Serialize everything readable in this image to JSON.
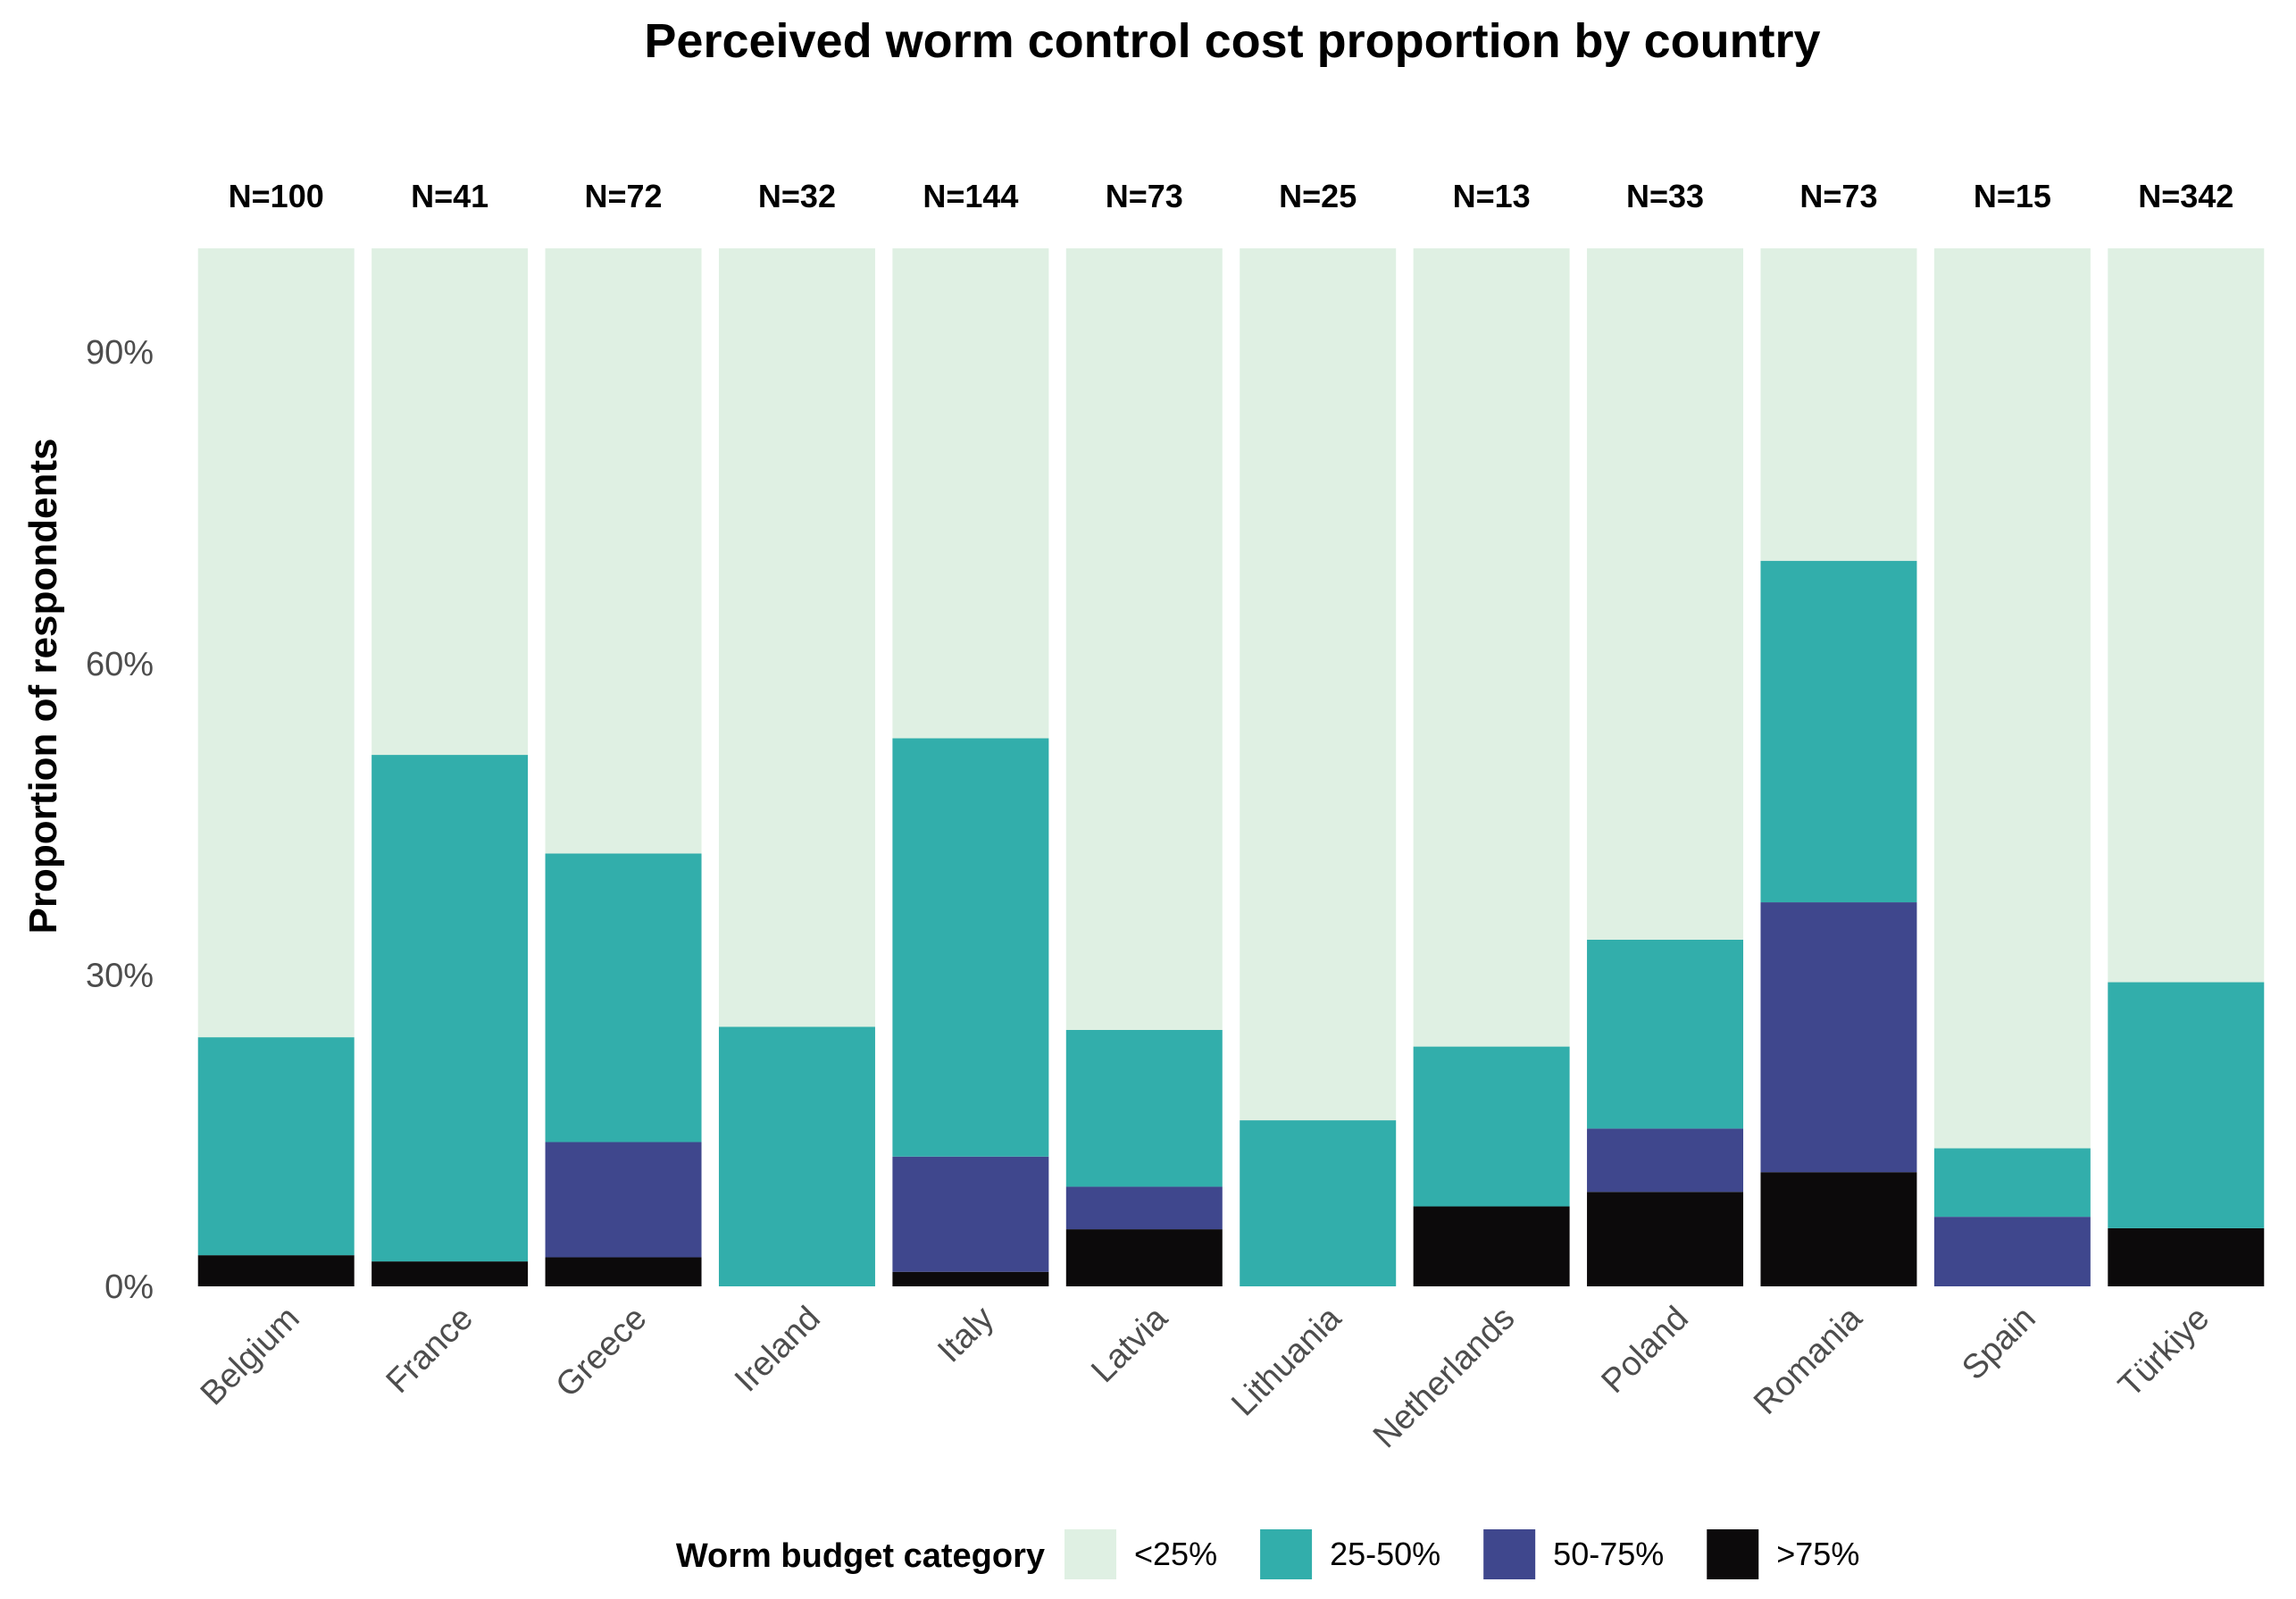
{
  "chart_data": {
    "type": "bar",
    "stacked": true,
    "title": "Perceived worm control cost proportion by country",
    "xlabel": "",
    "ylabel": "Proportion of respondents",
    "ylim": [
      0,
      1
    ],
    "yticks": [
      0,
      0.3,
      0.6,
      0.9
    ],
    "ytick_labels": [
      "0%",
      "30%",
      "60%",
      "90%"
    ],
    "categories": [
      "Belgium",
      "France",
      "Greece",
      "Ireland",
      "Italy",
      "Latvia",
      "Lithuania",
      "Netherlands",
      "Poland",
      "Romania",
      "Spain",
      "Türkiye"
    ],
    "n_labels": [
      "N=100",
      "N=41",
      "N=72",
      "N=32",
      "N=144",
      "N=73",
      "N=25",
      "N=13",
      "N=33",
      "N=73",
      "N=15",
      "N=342"
    ],
    "grid": false,
    "legend": {
      "title": "Worm budget category",
      "position": "bottom"
    },
    "series": [
      {
        "name": ">75%",
        "color": "#0c0a0b",
        "values": [
          0.03,
          0.024,
          0.028,
          0.0,
          0.014,
          0.055,
          0.0,
          0.077,
          0.091,
          0.11,
          0.0,
          0.056
        ]
      },
      {
        "name": "50-75%",
        "color": "#3f478d",
        "values": [
          0.0,
          0.0,
          0.111,
          0.0,
          0.111,
          0.041,
          0.0,
          0.0,
          0.061,
          0.26,
          0.067,
          0.0
        ]
      },
      {
        "name": "25-50%",
        "color": "#32aeab",
        "values": [
          0.21,
          0.488,
          0.278,
          0.25,
          0.403,
          0.151,
          0.16,
          0.154,
          0.182,
          0.329,
          0.066,
          0.237
        ]
      },
      {
        "name": "<25%",
        "color": "#dff0e3",
        "values": [
          0.76,
          0.488,
          0.583,
          0.75,
          0.472,
          0.753,
          0.84,
          0.769,
          0.666,
          0.301,
          0.867,
          0.707
        ]
      }
    ]
  }
}
